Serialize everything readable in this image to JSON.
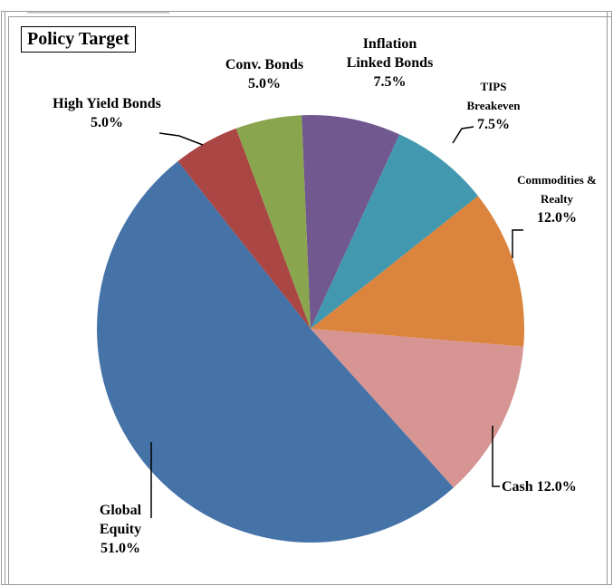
{
  "chart_data": {
    "type": "pie",
    "title": "Policy Target",
    "categories": [
      "Inflation Linked Bonds",
      "TIPS Breakeven",
      "Commodities & Realty",
      "Cash",
      "Global Equity",
      "High Yield Bonds",
      "Conv. Bonds"
    ],
    "values": [
      7.5,
      7.5,
      12,
      12,
      51,
      5,
      5
    ],
    "value_labels": [
      "7.5%",
      "7.5%",
      "12.0%",
      "12.0%",
      "51.0%",
      "5.0%",
      "5.0%"
    ],
    "colors": [
      "#71588f",
      "#4198af",
      "#db843d",
      "#d69593",
      "#4572a7",
      "#aa4643",
      "#89a54e"
    ]
  }
}
